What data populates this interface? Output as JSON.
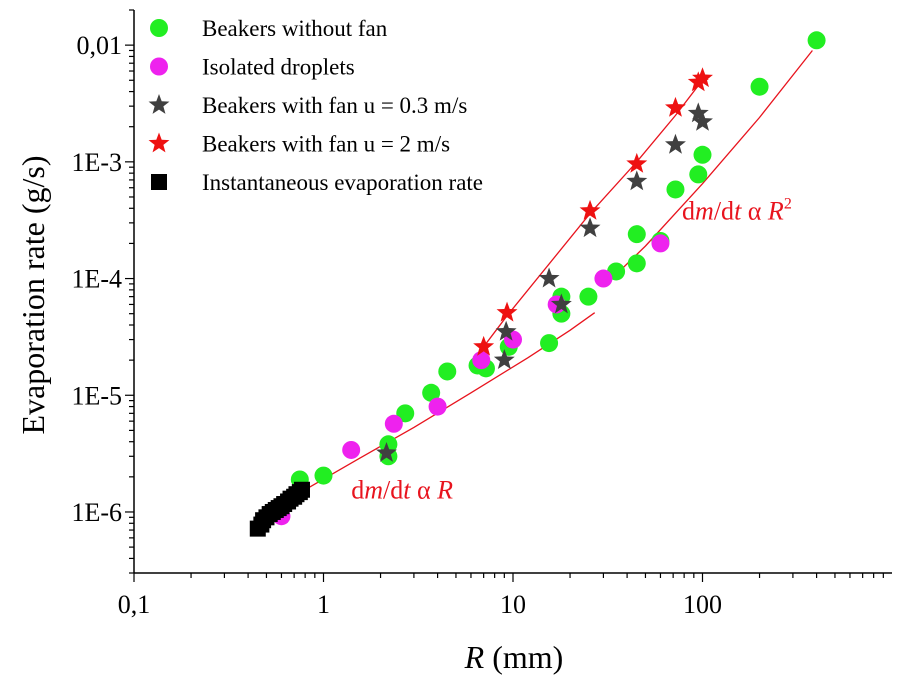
{
  "chart_data": {
    "type": "scatter",
    "xscale": "log",
    "yscale": "log",
    "xlim": [
      0.1,
      1000
    ],
    "ylim": [
      3e-07,
      0.02
    ],
    "xlabel": {
      "italic": "R",
      "rest": " (mm)"
    },
    "ylabel": "Evaporation rate (g/s)",
    "xticks": [
      {
        "value": 0.1,
        "label": "0,1"
      },
      {
        "value": 1,
        "label": "1"
      },
      {
        "value": 10,
        "label": "10"
      },
      {
        "value": 100,
        "label": "100"
      }
    ],
    "yticks": [
      {
        "value": 1e-06,
        "label": "1E-6"
      },
      {
        "value": 1e-05,
        "label": "1E-5"
      },
      {
        "value": 0.0001,
        "label": "1E-4"
      },
      {
        "value": 0.001,
        "label": "1E-3"
      },
      {
        "value": 0.01,
        "label": "0,01"
      }
    ],
    "grid": false,
    "legend_position": "top-left",
    "series": [
      {
        "name": "Beakers without fan",
        "marker": "circle",
        "color": "#22ee22",
        "points": [
          [
            0.75,
            1.9e-06
          ],
          [
            1.0,
            2.05e-06
          ],
          [
            2.2,
            3e-06
          ],
          [
            2.2,
            3.8e-06
          ],
          [
            2.7,
            7e-06
          ],
          [
            3.7,
            1.05e-05
          ],
          [
            4.5,
            1.6e-05
          ],
          [
            6.5,
            1.8e-05
          ],
          [
            7.2,
            1.7e-05
          ],
          [
            9.5,
            2.6e-05
          ],
          [
            15.5,
            2.8e-05
          ],
          [
            18,
            7e-05
          ],
          [
            18,
            5e-05
          ],
          [
            25,
            7e-05
          ],
          [
            35,
            0.000115
          ],
          [
            45,
            0.000135
          ],
          [
            45,
            0.00024
          ],
          [
            60,
            0.00021
          ],
          [
            72,
            0.00058
          ],
          [
            95,
            0.00078
          ],
          [
            100,
            0.00115
          ],
          [
            200,
            0.0044
          ],
          [
            400,
            0.011
          ]
        ]
      },
      {
        "name": "Isolated droplets",
        "marker": "circle",
        "color": "#ee22ee",
        "points": [
          [
            0.6,
            9.2e-07
          ],
          [
            1.4,
            3.4e-06
          ],
          [
            2.35,
            5.7e-06
          ],
          [
            4.0,
            8e-06
          ],
          [
            6.8,
            2e-05
          ],
          [
            10,
            3e-05
          ],
          [
            17,
            6e-05
          ],
          [
            30,
            0.0001
          ],
          [
            60,
            0.0002
          ]
        ]
      },
      {
        "name": "Beakers with fan u = 0.3 m/s",
        "marker": "star",
        "color": "#404040",
        "points": [
          [
            2.15,
            3.2e-06
          ],
          [
            9.0,
            2e-05
          ],
          [
            9.2,
            3.5e-05
          ],
          [
            15.5,
            0.0001
          ],
          [
            18,
            6e-05
          ],
          [
            25.5,
            0.00027
          ],
          [
            45,
            0.00068
          ],
          [
            72,
            0.0014
          ],
          [
            95,
            0.0026
          ],
          [
            100,
            0.0022
          ]
        ]
      },
      {
        "name": "Beakers with fan u = 2 m/s",
        "marker": "star",
        "color": "#ee1111",
        "points": [
          [
            7.0,
            2.6e-05
          ],
          [
            9.3,
            5.1e-05
          ],
          [
            25.5,
            0.00038
          ],
          [
            45,
            0.00096
          ],
          [
            72,
            0.0029
          ],
          [
            95,
            0.0048
          ],
          [
            100,
            0.0052
          ]
        ]
      },
      {
        "name": "Instantaneous evaporation rate",
        "marker": "square",
        "color": "#000000",
        "points": [
          [
            0.45,
            7.2e-07
          ],
          [
            0.47,
            7.8e-07
          ],
          [
            0.48,
            8.5e-07
          ],
          [
            0.5,
            9e-07
          ],
          [
            0.52,
            9.6e-07
          ],
          [
            0.54,
            1e-06
          ],
          [
            0.56,
            1.04e-06
          ],
          [
            0.58,
            1.08e-06
          ],
          [
            0.6,
            1.12e-06
          ],
          [
            0.62,
            1.17e-06
          ],
          [
            0.65,
            1.23e-06
          ],
          [
            0.67,
            1.3e-06
          ],
          [
            0.7,
            1.35e-06
          ],
          [
            0.72,
            1.42e-06
          ],
          [
            0.75,
            1.48e-06
          ],
          [
            0.77,
            1.55e-06
          ]
        ]
      }
    ],
    "fit_lines": [
      {
        "color": "#e8141e",
        "points": [
          [
            0.5,
            1e-06
          ],
          [
            1.5,
            2.8e-06
          ],
          [
            3.0,
            5.3e-06
          ],
          [
            6.0,
            1.05e-05
          ],
          [
            12,
            2.1e-05
          ],
          [
            20,
            3.6e-05
          ],
          [
            27,
            5.1e-05
          ]
        ]
      },
      {
        "color": "#e8141e",
        "points": [
          [
            30,
            8.5e-05
          ],
          [
            50,
            0.00019
          ],
          [
            100,
            0.00065
          ],
          [
            200,
            0.0024
          ],
          [
            380,
            0.009
          ]
        ]
      },
      {
        "color": "#e8141e",
        "points": [
          [
            7.0,
            2.6e-05
          ],
          [
            9.3,
            4.8e-05
          ],
          [
            25.5,
            0.00036
          ],
          [
            45,
            0.001
          ],
          [
            72,
            0.0025
          ],
          [
            98,
            0.0048
          ]
        ]
      }
    ],
    "annotations": [
      {
        "name": "linear-law",
        "parts": [
          {
            "text": "d",
            "style": "normal"
          },
          {
            "text": "m",
            "style": "italic"
          },
          {
            "text": "/d",
            "style": "normal"
          },
          {
            "text": "t",
            "style": "italic"
          },
          {
            "text": " α ",
            "style": "normal"
          },
          {
            "text": "R",
            "style": "italic"
          }
        ],
        "at": [
          1.4,
          1.3e-06
        ]
      },
      {
        "name": "quadratic-law",
        "parts": [
          {
            "text": "d",
            "style": "normal"
          },
          {
            "text": "m",
            "style": "italic"
          },
          {
            "text": "/d",
            "style": "normal"
          },
          {
            "text": "t",
            "style": "italic"
          },
          {
            "text": " α ",
            "style": "normal"
          },
          {
            "text": "R",
            "style": "italic"
          },
          {
            "text": "2",
            "style": "sup"
          }
        ],
        "at": [
          78,
          0.00032
        ]
      }
    ]
  }
}
